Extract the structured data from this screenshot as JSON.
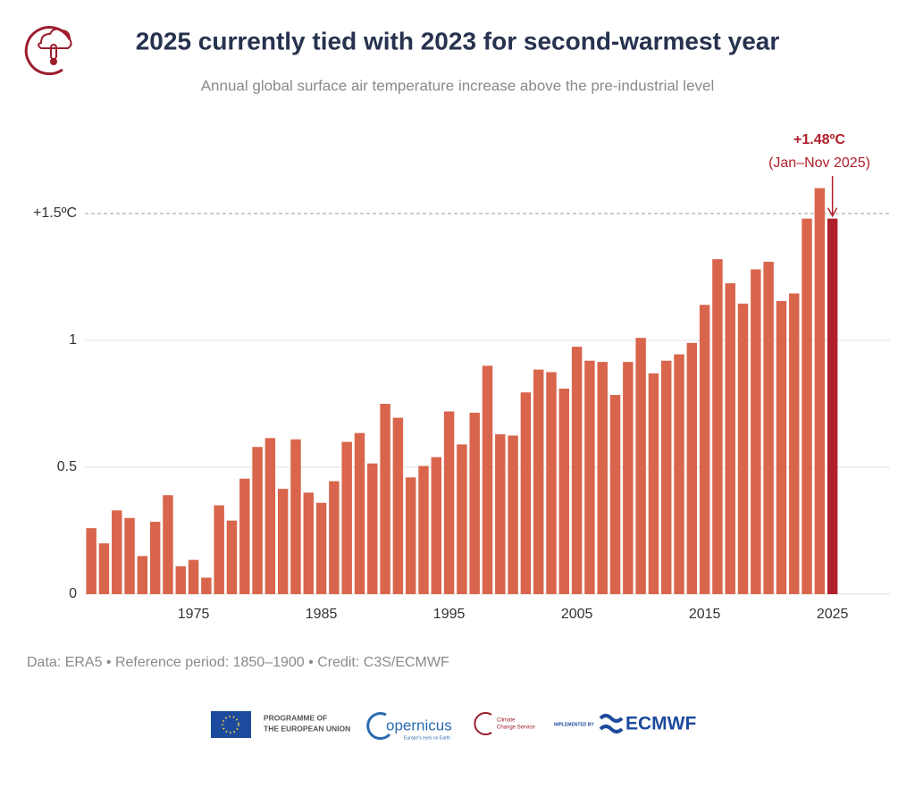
{
  "chart_data": {
    "type": "bar",
    "title": "2025 currently tied with 2023 for second-warmest year",
    "subtitle": "Annual global surface air temperature increase above the pre-industrial level",
    "x": [
      1967,
      1968,
      1969,
      1970,
      1971,
      1972,
      1973,
      1974,
      1975,
      1976,
      1977,
      1978,
      1979,
      1980,
      1981,
      1982,
      1983,
      1984,
      1985,
      1986,
      1987,
      1988,
      1989,
      1990,
      1991,
      1992,
      1993,
      1994,
      1995,
      1996,
      1997,
      1998,
      1999,
      2000,
      2001,
      2002,
      2003,
      2004,
      2005,
      2006,
      2007,
      2008,
      2009,
      2010,
      2011,
      2012,
      2013,
      2014,
      2015,
      2016,
      2017,
      2018,
      2019,
      2020,
      2021,
      2022,
      2023,
      2024,
      2025
    ],
    "values": [
      0.26,
      0.2,
      0.33,
      0.3,
      0.15,
      0.285,
      0.39,
      0.11,
      0.135,
      0.065,
      0.35,
      0.29,
      0.455,
      0.58,
      0.615,
      0.415,
      0.61,
      0.4,
      0.36,
      0.445,
      0.6,
      0.635,
      0.515,
      0.75,
      0.695,
      0.46,
      0.505,
      0.54,
      0.72,
      0.59,
      0.715,
      0.9,
      0.63,
      0.625,
      0.795,
      0.885,
      0.875,
      0.81,
      0.975,
      0.92,
      0.915,
      0.785,
      0.915,
      1.01,
      0.87,
      0.92,
      0.945,
      0.99,
      1.14,
      1.32,
      1.225,
      1.145,
      1.28,
      1.31,
      1.155,
      1.185,
      1.48,
      1.6,
      1.48
    ],
    "color": "#d9654c",
    "highlight_x": 2025,
    "highlight_color": "#b01f2b",
    "xlim": [
      1966.5,
      2029.5
    ],
    "xticks": [
      1975,
      1985,
      1995,
      2005,
      2015,
      2025
    ],
    "ylim": [
      0,
      1.75
    ],
    "yticks": [
      0,
      0.5,
      1,
      {
        "value": 1.5,
        "label": "+1.5ºC"
      }
    ],
    "grid": true,
    "annotation": {
      "text": "+1.48ºC",
      "subtext": "(Jan–Nov 2025)"
    },
    "footnote": "Data: ERA5 • Reference period: 1850–1900 • Credit: C3S/ECMWF"
  },
  "logos": {
    "eu": [
      "PROGRAMME OF",
      "THE EUROPEAN UNION"
    ],
    "copernicus": "opernicus",
    "copernicus_tagline": "Europe's eyes on Earth",
    "c3s": [
      "Climate",
      "Change Service"
    ],
    "implemented": "IMPLEMENTED BY",
    "ecmwf": "ECMWF"
  }
}
